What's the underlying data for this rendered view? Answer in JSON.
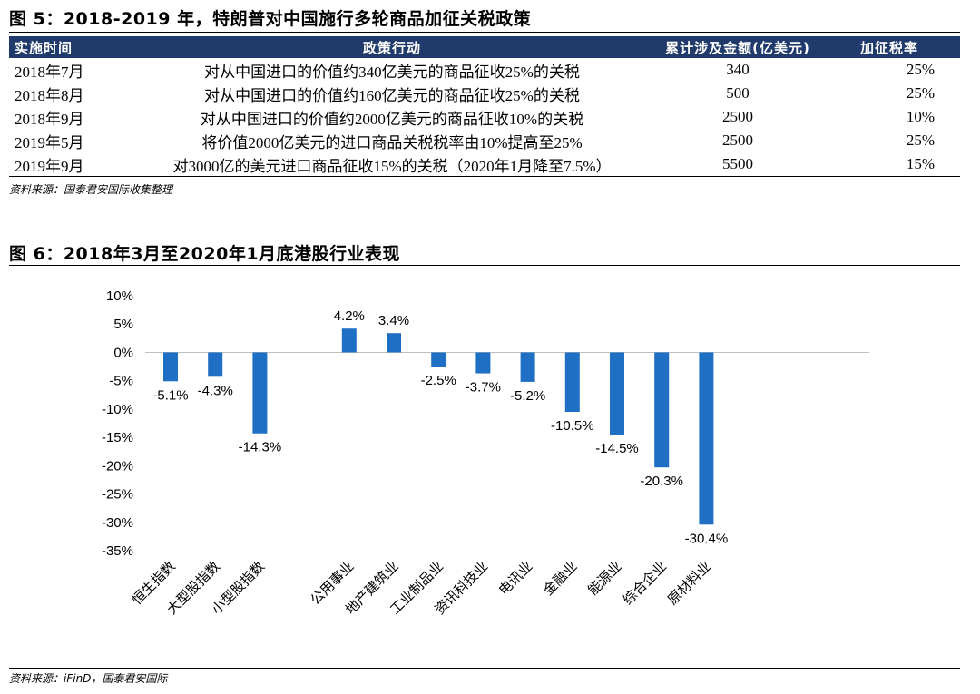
{
  "figure5": {
    "title": "图 5：2018-2019 年，特朗普对中国施行多轮商品加征关税政策",
    "headers": [
      "实施时间",
      "政策行动",
      "累计涉及金额(亿美元)",
      "加征税率"
    ],
    "rows": [
      [
        "2018年7月",
        "对从中国进口的价值约340亿美元的商品征收25%的关税",
        "340",
        "25%"
      ],
      [
        "2018年8月",
        "对从中国进口的价值约160亿美元的商品征收25%的关税",
        "500",
        "25%"
      ],
      [
        "2018年9月",
        "对从中国进口的价值约2000亿美元的商品征收10%的关税",
        "2500",
        "10%"
      ],
      [
        "2019年5月",
        "将价值2000亿美元的进口商品关税税率由10%提高至25%",
        "2500",
        "25%"
      ],
      [
        "2019年9月",
        "对3000亿的美元进口商品征收15%的关税（2020年1月降至7.5%）",
        "5500",
        "15%"
      ]
    ],
    "source": "资料来源：国泰君安国际收集整理"
  },
  "figure6": {
    "title": "图 6：2018年3月至2020年1月底港股行业表现",
    "source": "资料来源：iFinD，国泰君安国际"
  },
  "chart_data": {
    "type": "bar",
    "title": "图 6：2018年3月至2020年1月底港股行业表现",
    "categories": [
      "恒生指数",
      "大型股指数",
      "小型股指数",
      "公用事业",
      "地产建筑业",
      "工业制品业",
      "资讯科技业",
      "电讯业",
      "金融业",
      "能源业",
      "综合企业",
      "原材料业"
    ],
    "slots": [
      0,
      1,
      2,
      4,
      5,
      6,
      7,
      8,
      9,
      10,
      11,
      12
    ],
    "values": [
      -5.1,
      -4.3,
      -14.3,
      4.2,
      3.4,
      -2.5,
      -3.7,
      -5.2,
      -10.5,
      -14.5,
      -20.3,
      -30.4
    ],
    "value_labels": [
      "-5.1%",
      "-4.3%",
      "-14.3%",
      "4.2%",
      "3.4%",
      "-2.5%",
      "-3.7%",
      "-5.2%",
      "-10.5%",
      "-14.5%",
      "-20.3%",
      "-30.4%"
    ],
    "y_ticks": [
      10,
      5,
      0,
      -5,
      -10,
      -15,
      -20,
      -25,
      -30,
      -35
    ],
    "y_tick_labels": [
      "10%",
      "5%",
      "0%",
      "-5%",
      "-10%",
      "-15%",
      "-20%",
      "-25%",
      "-30%",
      "-35%"
    ],
    "ylim": [
      -35,
      10
    ],
    "xlabel": "",
    "ylabel": "",
    "bar_color": "#1f6fc5",
    "grid": false
  }
}
